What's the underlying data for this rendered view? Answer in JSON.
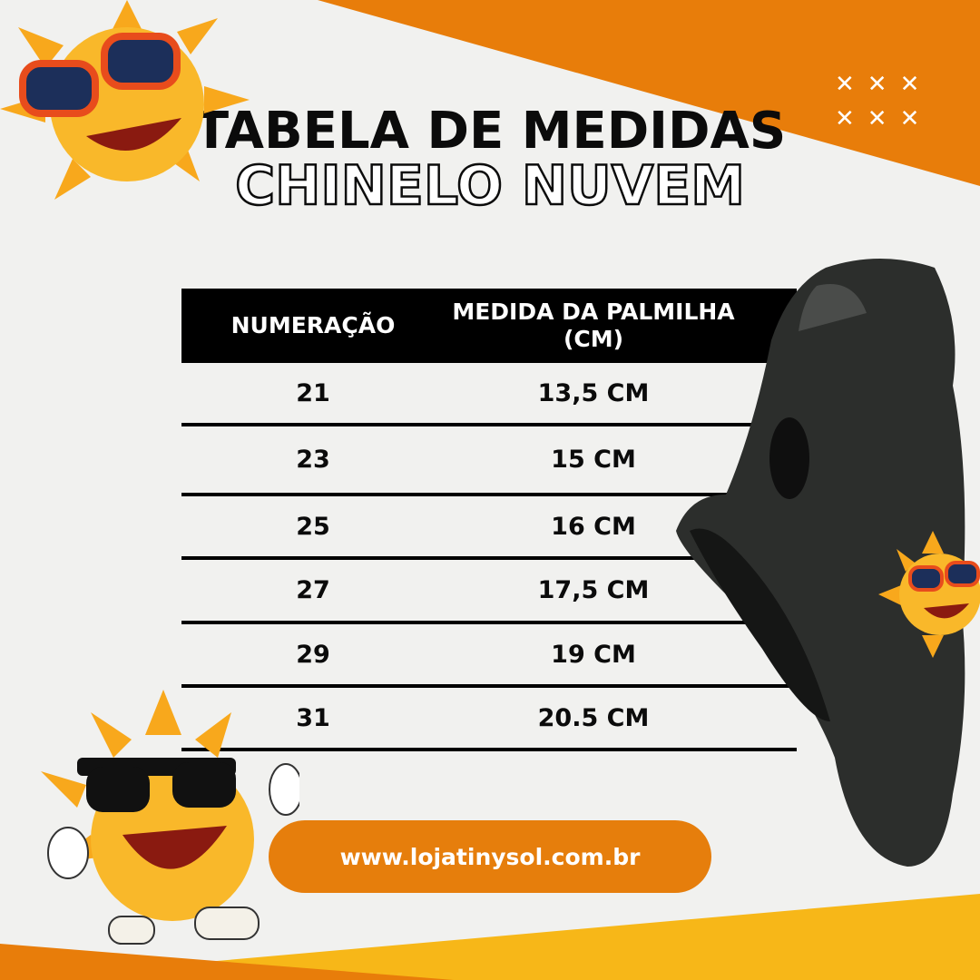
{
  "title": {
    "line1": "TABELA DE MEDIDAS",
    "line2": "CHINELO NUVEM"
  },
  "decor": {
    "x_marks": "✕✕✕ ✕✕✕"
  },
  "table": {
    "headers": [
      "NUMERAÇÃO",
      "MEDIDA DA PALMILHA (CM)"
    ],
    "rows": [
      [
        "21",
        "13,5 CM"
      ],
      [
        "23",
        "15 CM"
      ],
      [
        "25",
        "16 CM"
      ],
      [
        "27",
        "17,5 CM"
      ],
      [
        "29",
        "19 CM"
      ],
      [
        "31",
        "20.5 CM"
      ]
    ]
  },
  "footer": {
    "url": "www.lojatinysol.com.br"
  },
  "colors": {
    "orange": "#e87d0a",
    "yellow": "#f7b718",
    "black": "#0b0b0b",
    "background": "#f1f1ef"
  }
}
